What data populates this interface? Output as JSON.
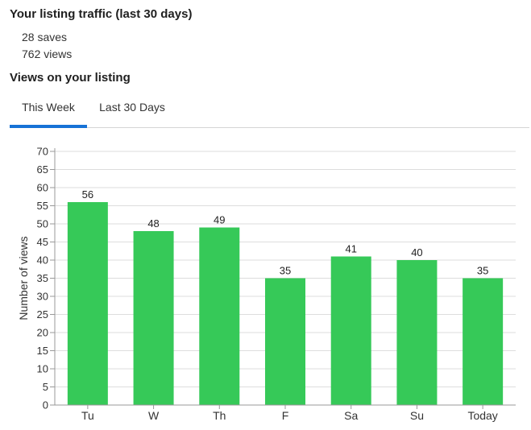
{
  "traffic": {
    "title": "Your listing traffic (last 30 days)",
    "saves": "28 saves",
    "views": "762 views"
  },
  "views_section": {
    "title": "Views on your listing"
  },
  "tabs": [
    {
      "label": "This Week",
      "active": true
    },
    {
      "label": "Last 30 Days",
      "active": false
    }
  ],
  "colors": {
    "bar": "#36c958",
    "tab_active": "#1672d6",
    "grid": "#dddddd",
    "axis": "#999999",
    "text": "#333333"
  },
  "chart_data": {
    "type": "bar",
    "categories": [
      "Tu",
      "W",
      "Th",
      "F",
      "Sa",
      "Su",
      "Today"
    ],
    "values": [
      56,
      48,
      49,
      35,
      41,
      40,
      35
    ],
    "data_labels": [
      "56",
      "48",
      "49",
      "35",
      "41",
      "40",
      "35"
    ],
    "title": "",
    "xlabel": "",
    "ylabel": "Number of views",
    "ylim": [
      0,
      70
    ],
    "yticks": [
      0,
      5,
      10,
      15,
      20,
      25,
      30,
      35,
      40,
      45,
      50,
      55,
      60,
      65,
      70
    ],
    "grid": true,
    "legend": "none"
  }
}
